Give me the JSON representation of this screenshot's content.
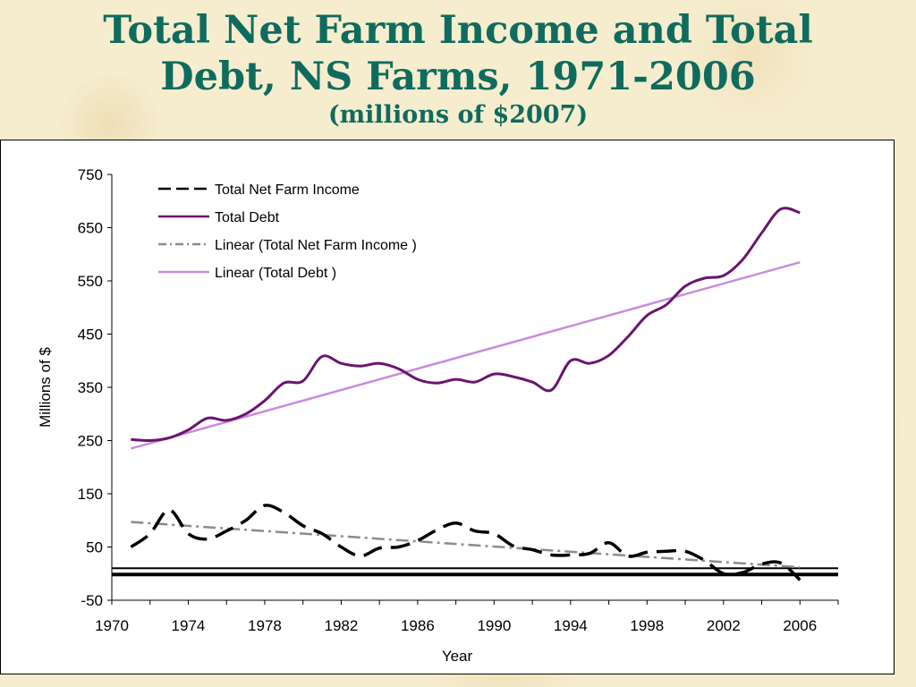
{
  "title": {
    "line1": "Total Net Farm Income and Total",
    "line2": "Debt, NS Farms, 1971-2006",
    "subtitle": "(millions of $2007)"
  },
  "colors": {
    "title": "#0f6b5e",
    "background": "#f6edcf",
    "net_income": "#000000",
    "debt": "#6a1570",
    "linear_income": "#8c8c8c",
    "linear_debt": "#c98bdc"
  },
  "chart_data": {
    "type": "line",
    "xlabel": "Year",
    "ylabel": "Millions of $",
    "xlim": [
      1970,
      2008
    ],
    "ylim": [
      -50,
      750
    ],
    "x_ticks": [
      1970,
      1974,
      1978,
      1982,
      1986,
      1990,
      1994,
      1998,
      2002,
      2006
    ],
    "y_ticks": [
      -50,
      50,
      150,
      250,
      350,
      450,
      550,
      650,
      750
    ],
    "grid": false,
    "legend_position": "top-left",
    "zero_line": true,
    "x": [
      1971,
      1972,
      1973,
      1974,
      1975,
      1976,
      1977,
      1978,
      1979,
      1980,
      1981,
      1982,
      1983,
      1984,
      1985,
      1986,
      1987,
      1988,
      1989,
      1990,
      1991,
      1992,
      1993,
      1994,
      1995,
      1996,
      1997,
      1998,
      1999,
      2000,
      2001,
      2002,
      2003,
      2004,
      2005,
      2006
    ],
    "series": [
      {
        "name": "Total Net Farm Income",
        "style": "dashed",
        "values": [
          50,
          75,
          120,
          75,
          65,
          80,
          100,
          128,
          115,
          90,
          75,
          50,
          33,
          48,
          50,
          62,
          82,
          95,
          80,
          75,
          52,
          45,
          35,
          35,
          38,
          58,
          33,
          40,
          42,
          42,
          25,
          0,
          2,
          18,
          20,
          -12
        ]
      },
      {
        "name": "Total Debt",
        "style": "solid",
        "values": [
          252,
          250,
          255,
          270,
          292,
          288,
          300,
          325,
          358,
          362,
          408,
          395,
          390,
          395,
          385,
          365,
          358,
          365,
          360,
          375,
          370,
          360,
          345,
          400,
          395,
          410,
          445,
          485,
          505,
          540,
          555,
          560,
          590,
          640,
          685,
          678
        ]
      },
      {
        "name": "Linear (Total Net Farm Income )",
        "style": "dash-dot",
        "trend": [
          [
            1971,
            97
          ],
          [
            2006,
            12
          ]
        ]
      },
      {
        "name": "Linear (Total Debt )",
        "style": "solid-light",
        "trend": [
          [
            1971,
            235
          ],
          [
            2006,
            585
          ]
        ]
      }
    ]
  }
}
